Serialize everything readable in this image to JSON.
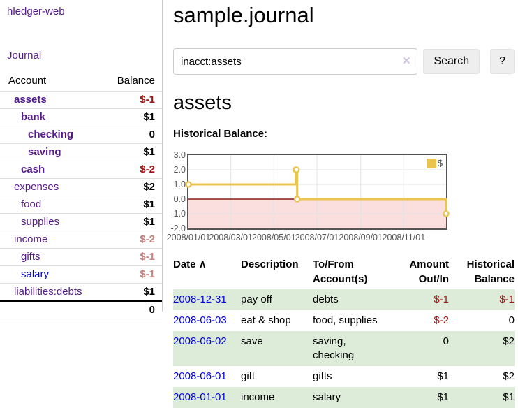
{
  "app_title": "hledger-web",
  "sidebar": {
    "journal_link": "Journal",
    "accounts": {
      "header_account": "Account",
      "header_balance": "Balance",
      "rows": [
        {
          "name": "assets",
          "balance": "$-1"
        },
        {
          "name": "bank",
          "balance": "$1"
        },
        {
          "name": "checking",
          "balance": "0"
        },
        {
          "name": "saving",
          "balance": "$1"
        },
        {
          "name": "cash",
          "balance": "$-2"
        },
        {
          "name": "expenses",
          "balance": "$2"
        },
        {
          "name": "food",
          "balance": "$1"
        },
        {
          "name": "supplies",
          "balance": "$1"
        },
        {
          "name": "income",
          "balance": "$-2"
        },
        {
          "name": "gifts",
          "balance": "$-1"
        },
        {
          "name": "salary",
          "balance": "$-1"
        },
        {
          "name": "liabilities:debts",
          "balance": "$1"
        }
      ],
      "total": "0"
    }
  },
  "header": {
    "title": "sample.journal"
  },
  "search": {
    "value": "inacct:assets",
    "clear_icon": "✕",
    "button_label": "Search",
    "help_label": "?"
  },
  "account_page": {
    "heading": "assets",
    "chart_label": "Historical Balance:"
  },
  "chart_data": {
    "type": "line",
    "style": "steps",
    "title": "Historical Balance:",
    "legend": {
      "label": "$",
      "position": "top-right"
    },
    "series": [
      {
        "name": "$",
        "color": "#e9c44e",
        "points": [
          [
            "2008-01-01",
            1
          ],
          [
            "2008-06-01",
            2
          ],
          [
            "2008-06-02",
            2
          ],
          [
            "2008-06-03",
            0
          ],
          [
            "2008-12-31",
            -1
          ]
        ]
      }
    ],
    "x_start": "2008-01-01",
    "x_end": "2008-12-31",
    "x_ticks": [
      "2008/01/01",
      "2008/03/01",
      "2008/05/01",
      "2008/07/01",
      "2008/09/01",
      "2008/11/01"
    ],
    "y_ticks": [
      "3.0",
      "2.0",
      "1.0",
      "0.0",
      "-1.0",
      "-2.0"
    ],
    "ylim": [
      -2,
      3
    ],
    "grid": true,
    "negative_region_color": "#fbdede",
    "zero_line_color": "#8b1a1a",
    "grid_color": "#e3e3e3",
    "border_color": "#545454"
  },
  "register": {
    "headers": {
      "date": "Date",
      "sort_icon": "∧",
      "description": "Description",
      "account_line1": "To/From",
      "account_line2": "Account(s)",
      "amount_line1": "Amount",
      "amount_line2": "Out/In",
      "balance_line1": "Historical",
      "balance_line2": "Balance"
    },
    "rows": [
      {
        "date": "2008-12-31",
        "description": "pay off",
        "accounts": "debts",
        "amount": "$-1",
        "balance": "$-1"
      },
      {
        "date": "2008-06-03",
        "description": "eat & shop",
        "accounts": "food, supplies",
        "amount": "$-2",
        "balance": "0"
      },
      {
        "date": "2008-06-02",
        "description": "save",
        "accounts": "saving,",
        "accounts2": "checking",
        "amount": "0",
        "balance": "$2"
      },
      {
        "date": "2008-06-01",
        "description": "gift",
        "accounts": "gifts",
        "amount": "$1",
        "balance": "$2"
      },
      {
        "date": "2008-01-01",
        "description": "income",
        "accounts": "salary",
        "amount": "$1",
        "balance": "$1"
      }
    ]
  },
  "colors": {
    "link_purple": "#551a8b",
    "link_blue": "#0000dd",
    "negative_strong": "#9e1616",
    "negative_muted": "#c5817e",
    "row_stripe_green": "#dcecd8",
    "chart_line_gold": "#e9c44e"
  }
}
